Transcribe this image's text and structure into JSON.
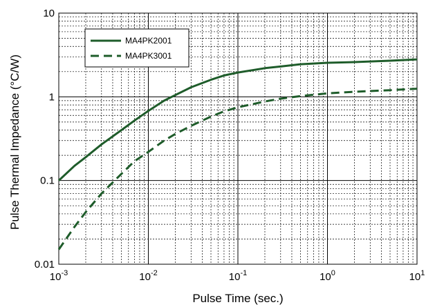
{
  "chart_data": {
    "type": "line",
    "title": "",
    "xlabel": "Pulse Time (sec.)",
    "ylabel": "Pulse Thermal Impedance (°C/W)",
    "x_scale": "log",
    "y_scale": "log",
    "xlim": [
      0.001,
      10
    ],
    "ylim": [
      0.01,
      10
    ],
    "grid": true,
    "legend_position": "top-left",
    "x_ticks": [
      {
        "value": 0.001,
        "base": "10",
        "exp": "-3"
      },
      {
        "value": 0.01,
        "base": "10",
        "exp": "-2"
      },
      {
        "value": 0.1,
        "base": "10",
        "exp": "-1"
      },
      {
        "value": 1,
        "base": "10",
        "exp": "0"
      },
      {
        "value": 10,
        "base": "10",
        "exp": "1"
      }
    ],
    "y_ticks": [
      {
        "value": 0.01,
        "label": "0.01"
      },
      {
        "value": 0.1,
        "label": "0.1"
      },
      {
        "value": 1,
        "label": "1"
      },
      {
        "value": 10,
        "label": "10"
      }
    ],
    "series": [
      {
        "name": "MA4PK2001",
        "style": "solid",
        "color": "#1e5c2a",
        "x": [
          0.001,
          0.0015,
          0.002,
          0.003,
          0.005,
          0.007,
          0.01,
          0.015,
          0.02,
          0.03,
          0.05,
          0.07,
          0.1,
          0.2,
          0.3,
          0.5,
          1,
          2,
          5,
          10
        ],
        "y": [
          0.1,
          0.15,
          0.19,
          0.27,
          0.4,
          0.52,
          0.68,
          0.9,
          1.05,
          1.3,
          1.6,
          1.8,
          1.95,
          2.2,
          2.3,
          2.45,
          2.55,
          2.6,
          2.7,
          2.8
        ]
      },
      {
        "name": "MA4PK3001",
        "style": "dashed",
        "color": "#1e5c2a",
        "x": [
          0.001,
          0.0015,
          0.002,
          0.003,
          0.005,
          0.007,
          0.01,
          0.015,
          0.02,
          0.03,
          0.05,
          0.07,
          0.1,
          0.2,
          0.3,
          0.5,
          1,
          2,
          5,
          10
        ],
        "y": [
          0.015,
          0.028,
          0.042,
          0.07,
          0.12,
          0.17,
          0.22,
          0.3,
          0.36,
          0.45,
          0.58,
          0.67,
          0.75,
          0.88,
          0.95,
          1.02,
          1.1,
          1.15,
          1.2,
          1.25
        ]
      }
    ]
  }
}
